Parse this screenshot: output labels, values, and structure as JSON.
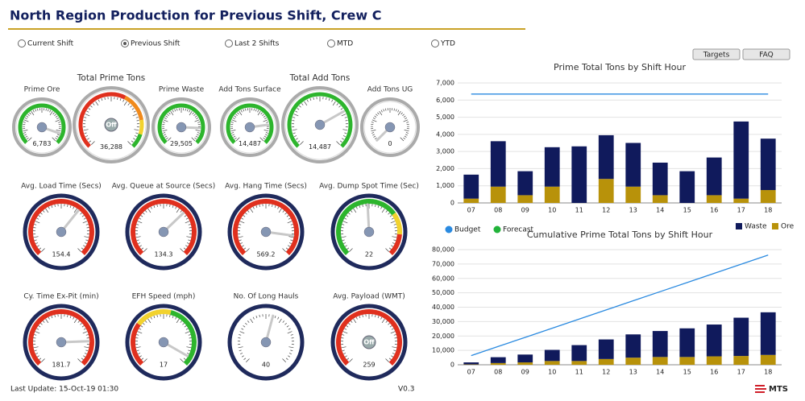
{
  "header": {
    "title": "North Region Production for Previous Shift, Crew C"
  },
  "radios": {
    "options": [
      "Current Shift",
      "Previous Shift",
      "Last 2 Shifts",
      "MTD",
      "YTD"
    ],
    "selected": 1
  },
  "buttons": [
    "Targets",
    "FAQ"
  ],
  "gauges": [
    {
      "title": "Prime Ore",
      "value": 6783,
      "value_label": "6,783",
      "range": [
        0,
        7500
      ],
      "style": "green"
    },
    {
      "title": "Total Prime Tons",
      "value": 36288,
      "value_label": "36,288",
      "range": [
        0,
        40000
      ],
      "style": "prime",
      "status": "Off"
    },
    {
      "title": "Prime Waste",
      "value": 29505,
      "value_label": "29,505",
      "range": [
        0,
        35000
      ],
      "style": "green"
    },
    {
      "title": "Add Tons Surface",
      "value": 14487,
      "value_label": "14,487",
      "range": [
        0,
        18000
      ],
      "style": "green"
    },
    {
      "title": "Total Add Tons",
      "value": 14487,
      "value_label": "14,487",
      "range": [
        0,
        20000
      ],
      "style": "green"
    },
    {
      "title": "Add Tons UG",
      "value": 0,
      "range": [
        0,
        100
      ],
      "style": "plain"
    },
    {
      "title": "Avg. Load Time (Secs)",
      "value": 154.4,
      "range": [
        0,
        240
      ],
      "style": "red"
    },
    {
      "title": "Avg. Queue at Source (Secs)",
      "value": 134.3,
      "range": [
        0,
        200
      ],
      "style": "red"
    },
    {
      "title": "Avg. Hang Time (Secs)",
      "value": 569.2,
      "range": [
        0,
        660
      ],
      "style": "red"
    },
    {
      "title": "Avg. Dump Spot Time (Sec)",
      "value": 22,
      "range": [
        0,
        45
      ],
      "style": "dump"
    },
    {
      "title": "Cy. Time Ex-Pit (min)",
      "value": 181.7,
      "range": [
        0,
        220
      ],
      "style": "red"
    },
    {
      "title": "EFH Speed (mph)",
      "value": 17,
      "range": [
        0,
        18
      ],
      "style": "efh"
    },
    {
      "title": "No. Of Long Hauls",
      "value": 40,
      "range": [
        0,
        72
      ],
      "style": "plain"
    },
    {
      "title": "Avg. Payload (WMT)",
      "value": 259,
      "range": [
        0,
        300
      ],
      "style": "red",
      "status": "Off"
    }
  ],
  "chart_data": [
    {
      "type": "bar",
      "title": "Prime Total Tons by Shift Hour",
      "categories": [
        "07",
        "08",
        "09",
        "10",
        "11",
        "12",
        "13",
        "14",
        "15",
        "16",
        "17",
        "18"
      ],
      "series": [
        {
          "name": "Waste",
          "color": "#101a5c",
          "values": [
            1400,
            2650,
            1400,
            2300,
            3300,
            2550,
            2550,
            1900,
            1850,
            2200,
            4500,
            3000
          ]
        },
        {
          "name": "Ore",
          "color": "#b8920a",
          "values": [
            250,
            950,
            450,
            950,
            0,
            1400,
            950,
            450,
            0,
            450,
            250,
            750
          ]
        },
        {
          "name": "Budget",
          "type": "line",
          "color": "#2a8ae0",
          "values": [
            6350,
            6350,
            6350,
            6350,
            6350,
            6350,
            6350,
            6350,
            6350,
            6350,
            6350,
            6350
          ]
        },
        {
          "name": "Forecast",
          "type": "line",
          "color": "#22b33a",
          "values": [
            null,
            null,
            null,
            null,
            null,
            null,
            null,
            null,
            null,
            null,
            null,
            null
          ]
        }
      ],
      "ylim": [
        0,
        7000
      ],
      "yticks": [
        0,
        {
          "value": 1000,
          "label": "1,000"
        },
        {
          "value": 2000,
          "label": "2,000"
        },
        {
          "value": 3000,
          "label": "3,000"
        },
        {
          "value": 4000,
          "label": "4,000"
        },
        {
          "value": 5000,
          "label": "5,000"
        },
        {
          "value": 6000,
          "label": "6,000"
        },
        {
          "value": 7000,
          "label": "7,000"
        }
      ],
      "grid": true,
      "legend": true
    },
    {
      "type": "bar",
      "title": "Cumulative Prime Total Tons by Shift Hour",
      "categories": [
        "07",
        "08",
        "09",
        "10",
        "11",
        "12",
        "13",
        "14",
        "15",
        "16",
        "17",
        "18"
      ],
      "series": [
        {
          "name": "Waste",
          "color": "#101a5c",
          "values": [
            1400,
            4050,
            5450,
            7750,
            11050,
            13600,
            16150,
            18050,
            19900,
            22100,
            26600,
            29600
          ]
        },
        {
          "name": "Ore",
          "color": "#b8920a",
          "values": [
            250,
            1200,
            1650,
            2600,
            2600,
            4000,
            4950,
            5400,
            5400,
            5850,
            6100,
            6850
          ]
        },
        {
          "name": "Budget",
          "type": "line",
          "color": "#2a8ae0",
          "values": [
            6350,
            12700,
            19050,
            25400,
            31750,
            38100,
            44450,
            50800,
            57150,
            63500,
            69850,
            76200
          ]
        }
      ],
      "ylim": [
        0,
        80000
      ],
      "yticks": [
        0,
        {
          "value": 10000,
          "label": "10,000"
        },
        {
          "value": 20000,
          "label": "20,000"
        },
        {
          "value": 30000,
          "label": "30,000"
        },
        {
          "value": 40000,
          "label": "40,000"
        },
        {
          "value": 50000,
          "label": "50,000"
        },
        {
          "value": 60000,
          "label": "60,000"
        },
        {
          "value": 70000,
          "label": "70,000"
        },
        {
          "value": 80000,
          "label": "80,000"
        }
      ],
      "grid": true,
      "legend": false
    }
  ],
  "footer": {
    "updated": "Last Update: 15-Oct-19 01:30",
    "version": "V0.3",
    "logo": "MTS"
  }
}
